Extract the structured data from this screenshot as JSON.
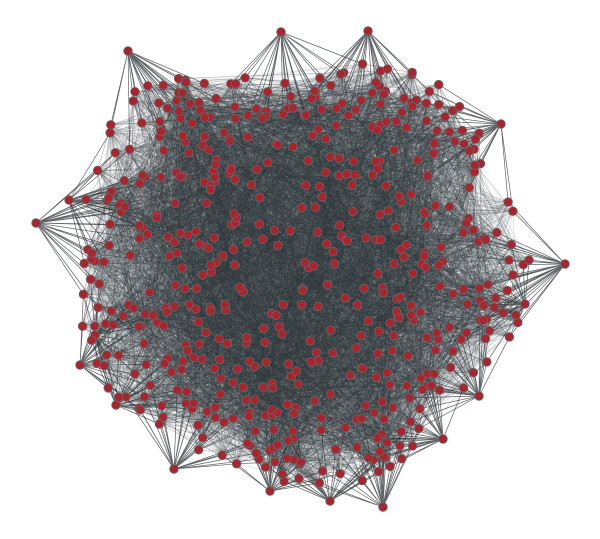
{
  "graph": {
    "type": "network",
    "colors": {
      "background": "#ffffff",
      "edge": "#2b3136",
      "node_fill": "#a4272f",
      "node_stroke": "#6e6468"
    }
  }
}
